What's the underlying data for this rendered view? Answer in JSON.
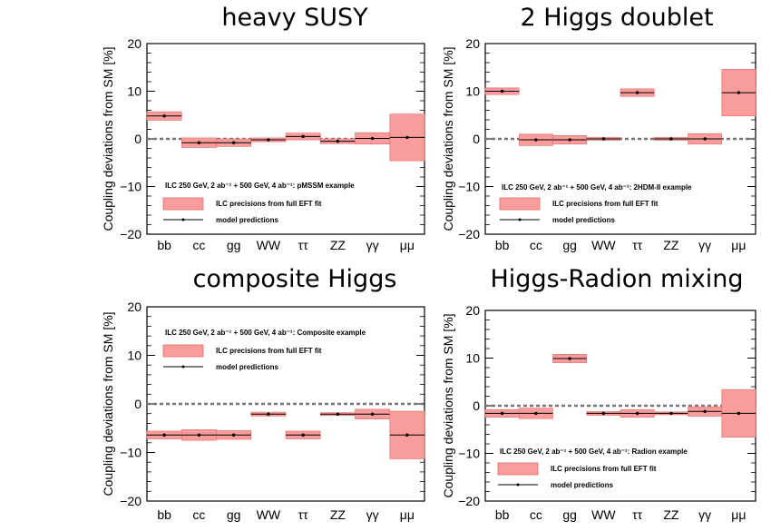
{
  "colors": {
    "band": "#f99c9c",
    "band_stroke": "#e86a6a",
    "marker": "#000000",
    "zero_line": "#777777"
  },
  "chart_data": [
    {
      "type": "bar",
      "title": "heavy SUSY",
      "ylabel": "Coupling deviations from SM [%]",
      "ylim": [
        -20,
        20
      ],
      "yticks": [
        "20",
        "10",
        "0",
        "−10",
        "−20"
      ],
      "categories": [
        "bb",
        "cc",
        "gg",
        "WW",
        "ττ",
        "ZZ",
        "γγ",
        "μμ"
      ],
      "note": "ILC 250 GeV, 2 ab⁻¹ + 500 GeV, 4 ab⁻¹: pMSSM example",
      "legend": {
        "band": "ILC precisions from full EFT fit",
        "line": "model predictions",
        "position": "lower-left"
      },
      "series": [
        {
          "name": "ILC precisions from full EFT fit",
          "values": [
            0.9,
            1.0,
            0.8,
            0.4,
            0.7,
            0.5,
            1.2,
            4.9
          ]
        },
        {
          "name": "model predictions",
          "values": [
            4.8,
            -0.8,
            -0.8,
            -0.2,
            0.5,
            -0.5,
            0.1,
            0.3
          ]
        }
      ]
    },
    {
      "type": "bar",
      "title": "2 Higgs doublet",
      "ylabel": "Coupling deviations from SM [%]",
      "ylim": [
        -20,
        20
      ],
      "yticks": [
        "20",
        "10",
        "0",
        "−10",
        "−20"
      ],
      "categories": [
        "bb",
        "cc",
        "gg",
        "WW",
        "ττ",
        "ZZ",
        "γγ",
        "μμ"
      ],
      "note": "ILC 250 GeV, 2 ab⁻¹ + 500 GeV, 4 ab⁻¹: 2HDM-II example",
      "legend": {
        "band": "ILC precisions from full EFT fit",
        "line": "model predictions",
        "position": "lower-left"
      },
      "series": [
        {
          "name": "ILC precisions from full EFT fit",
          "values": [
            0.7,
            1.2,
            0.9,
            0.3,
            0.8,
            0.3,
            1.1,
            4.9
          ]
        },
        {
          "name": "model predictions",
          "values": [
            10.0,
            -0.2,
            -0.2,
            0.0,
            9.7,
            0.0,
            0.0,
            9.7
          ]
        }
      ]
    },
    {
      "type": "bar",
      "title": "composite Higgs",
      "ylabel": "Coupling deviations from SM [%]",
      "ylim": [
        -20,
        20
      ],
      "yticks": [
        "20",
        "10",
        "0",
        "−10",
        "−20"
      ],
      "categories": [
        "bb",
        "cc",
        "gg",
        "WW",
        "ττ",
        "ZZ",
        "γγ",
        "μμ"
      ],
      "note": "ILC 250 GeV, 2 ab⁻¹ + 500 GeV, 4 ab⁻¹: Composite example",
      "legend": {
        "band": "ILC precisions from full EFT fit",
        "line": "model predictions",
        "position": "upper-left"
      },
      "series": [
        {
          "name": "ILC precisions from full EFT fit",
          "values": [
            0.8,
            1.1,
            0.9,
            0.4,
            0.8,
            0.3,
            1.0,
            4.9
          ]
        },
        {
          "name": "model predictions",
          "values": [
            -6.4,
            -6.4,
            -6.4,
            -2.1,
            -6.4,
            -2.1,
            -2.1,
            -6.4
          ]
        }
      ]
    },
    {
      "type": "bar",
      "title": "Higgs-Radion mixing",
      "ylabel": "Coupling deviations from SM [%]",
      "ylim": [
        -20,
        20
      ],
      "yticks": [
        "20",
        "10",
        "0",
        "−10",
        "−20"
      ],
      "categories": [
        "bb",
        "cc",
        "gg",
        "WW",
        "ττ",
        "ZZ",
        "γγ",
        "μμ"
      ],
      "note": "ILC 250 GeV, 2 ab⁻¹ + 500 GeV, 4 ab⁻¹: Radion example",
      "legend": {
        "band": "ILC precisions from full EFT fit",
        "line": "model predictions",
        "position": "lower-left"
      },
      "series": [
        {
          "name": "ILC precisions from full EFT fit",
          "values": [
            0.8,
            1.1,
            0.9,
            0.4,
            0.8,
            0.3,
            1.0,
            5.0
          ]
        },
        {
          "name": "model predictions",
          "values": [
            -1.6,
            -1.6,
            9.9,
            -1.6,
            -1.6,
            -1.6,
            -1.2,
            -1.6
          ]
        }
      ]
    }
  ]
}
